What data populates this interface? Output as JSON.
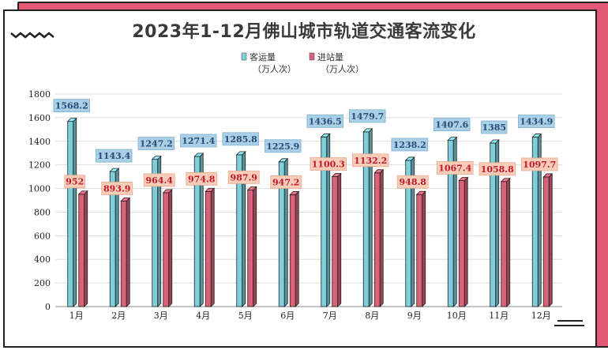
{
  "title": "2023年1-12月佛山城市轨道交通客流变化",
  "chart_data": {
    "type": "bar",
    "title": "2023年1-12月佛山城市轨道交通客流变化",
    "categories": [
      "1月",
      "2月",
      "3月",
      "4月",
      "5月",
      "6月",
      "7月",
      "8月",
      "9月",
      "10月",
      "11月",
      "12月"
    ],
    "series": [
      {
        "name": "客运量",
        "unit": "（万人次）",
        "color": "#7ecfdc",
        "label_bg": "#a8d0e6",
        "label_color": "#2c4a78",
        "values": [
          1568.2,
          1143.4,
          1247.2,
          1271.4,
          1285.8,
          1225.9,
          1436.5,
          1479.7,
          1238.2,
          1407.6,
          1385,
          1434.9
        ],
        "labels": [
          "1568.2",
          "1143.4",
          "1247.2",
          "1271.4",
          "1285.8",
          "1225.9",
          "1436.5",
          "1479.7",
          "1238.2",
          "1407.6",
          "1385",
          "1434.9"
        ]
      },
      {
        "name": "进站量",
        "unit": "（万人次）",
        "color": "#d9627a",
        "label_bg": "#f7cdb8",
        "label_color": "#c0182a",
        "values": [
          952,
          893.9,
          964.4,
          974.8,
          987.9,
          947.2,
          1100.3,
          1132.2,
          948.8,
          1067.4,
          1058.8,
          1097.7
        ],
        "labels": [
          "952",
          "893.9",
          "964.4",
          "974.8",
          "987.9",
          "947.2",
          "1100.3",
          "1132.2",
          "948.8",
          "1067.4",
          "1058.8",
          "1097.7"
        ]
      }
    ],
    "y_ticks": [
      "0",
      "200",
      "400",
      "600",
      "800",
      "1000",
      "1200",
      "1400",
      "1600",
      "1800"
    ],
    "ylim": [
      0,
      1800
    ],
    "grid": true,
    "legend_position": "top"
  }
}
